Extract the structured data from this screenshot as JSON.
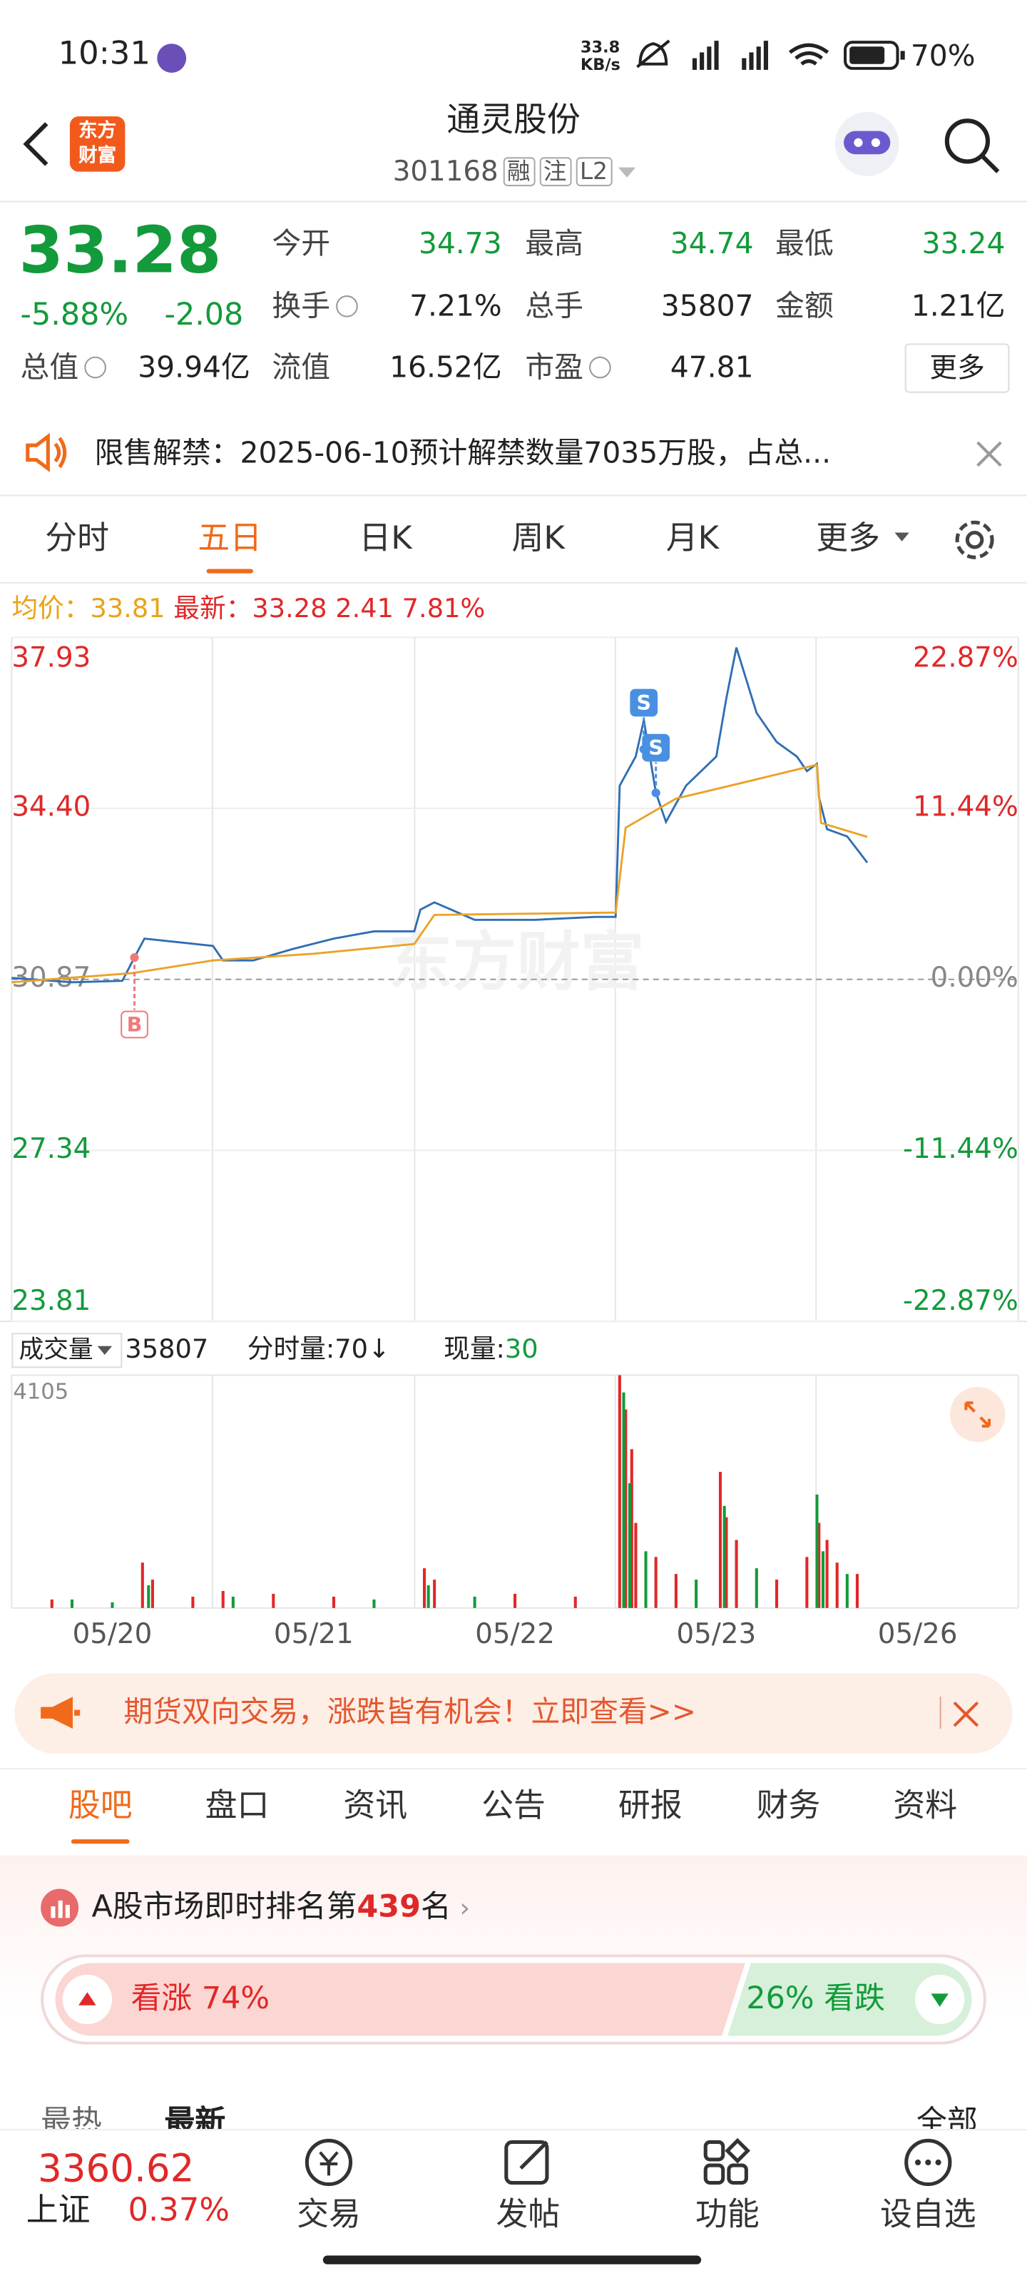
{
  "status_bar": {
    "time": "10:31",
    "net_speed": "33.8",
    "net_unit": "KB/s",
    "battery": "70%"
  },
  "header": {
    "logo": "东方财富",
    "title": "通灵股份",
    "code": "301168",
    "tags": [
      "融",
      "注",
      "L2"
    ]
  },
  "quote": {
    "price": "33.28",
    "change_pct": "-5.88%",
    "change": "-2.08",
    "fields": [
      {
        "label": "今开",
        "value": "34.73"
      },
      {
        "label": "最高",
        "value": "34.74"
      },
      {
        "label": "最低",
        "value": "33.24"
      },
      {
        "label": "换手",
        "value": "7.21%"
      },
      {
        "label": "总手",
        "value": "35807"
      },
      {
        "label": "金额",
        "value": "1.21亿"
      },
      {
        "label": "总值",
        "value": "39.94亿"
      },
      {
        "label": "流值",
        "value": "16.52亿"
      },
      {
        "label": "市盈",
        "value": "47.81"
      }
    ],
    "more": "更多"
  },
  "notice": {
    "text": "限售解禁：2025-06-10预计解禁数量7035万股，占总..."
  },
  "chart_tabs": {
    "items": [
      "分时",
      "五日",
      "日K",
      "周K",
      "月K",
      "更多"
    ],
    "active": 1
  },
  "chart_info": {
    "avg_label": "均价：",
    "avg": "33.81",
    "last_label": "最新：",
    "last": "33.28",
    "change": "2.41",
    "change_pct": "7.81%"
  },
  "chart_data": [
    {
      "type": "line",
      "watermark": "东方财富",
      "xlim": [
        0,
        5
      ],
      "ylim": [
        23.81,
        37.93
      ],
      "yticks": [
        37.93,
        {
          "value": 34.4,
          "label": "34.40"
        },
        30.87,
        27.34,
        23.81
      ],
      "y2lim": [
        -22.87,
        22.87
      ],
      "y2ticks": [
        {
          "value": 22.87,
          "label": "22.87%"
        },
        {
          "value": 11.44,
          "label": "11.44%"
        },
        {
          "value": 0,
          "label": "0.00%"
        },
        {
          "value": -11.44,
          "label": "-11.44%"
        },
        {
          "value": -22.87,
          "label": "-22.87%"
        }
      ],
      "series": [
        {
          "color": "#2f6db5",
          "x": [
            0,
            0.3,
            0.55,
            0.61,
            0.66,
            1.0,
            1.05,
            1.2,
            1.4,
            1.6,
            1.8,
            2.0,
            2.03,
            2.1,
            2.3,
            2.6,
            2.9,
            3.0,
            3.02,
            3.1,
            3.14,
            3.2,
            3.25,
            3.35,
            3.5,
            3.55,
            3.6,
            3.7,
            3.8,
            3.9,
            3.95,
            4.0,
            4.01,
            4.05,
            4.15,
            4.25
          ],
          "values": [
            30.9,
            30.81,
            30.84,
            31.32,
            31.71,
            31.56,
            31.26,
            31.26,
            31.5,
            31.71,
            31.86,
            31.86,
            32.31,
            32.46,
            32.1,
            32.1,
            32.16,
            32.16,
            34.87,
            35.47,
            36.22,
            34.72,
            34.12,
            34.87,
            35.47,
            36.67,
            37.72,
            36.37,
            35.77,
            35.47,
            35.17,
            35.32,
            34.63,
            33.97,
            33.82,
            33.28
          ]
        },
        {
          "color": "#eba227",
          "x": [
            0,
            0.6,
            1.0,
            1.5,
            2.0,
            2.1,
            3.0,
            3.05,
            3.3,
            3.6,
            4.0,
            4.02,
            4.25
          ],
          "values": [
            30.81,
            31.0,
            31.26,
            31.4,
            31.6,
            32.2,
            32.25,
            34.0,
            34.6,
            34.9,
            35.3,
            34.1,
            33.81
          ]
        }
      ],
      "annotations": [
        {
          "text": "B",
          "x": 0.61,
          "y": 31.32,
          "color": "#f07a7a"
        },
        {
          "text": "S",
          "x": 3.14,
          "y": 35.62,
          "color": "#4a90e2"
        },
        {
          "text": "S",
          "x": 3.2,
          "y": 34.72,
          "color": "#4a90e2"
        }
      ]
    },
    {
      "type": "bar",
      "xlim": [
        0,
        5
      ],
      "ylim": [
        0,
        4105
      ],
      "yticks": [
        4105
      ],
      "xticks": [
        {
          "value": 0.5,
          "label": "05/20"
        },
        {
          "value": 1.5,
          "label": "05/21"
        },
        {
          "value": 2.5,
          "label": "05/22"
        },
        {
          "value": 3.5,
          "label": "05/23"
        },
        {
          "value": 4.5,
          "label": "05/26"
        }
      ],
      "series": [
        {
          "color": "#e02828",
          "x": [
            0.2,
            0.65,
            0.7,
            0.9,
            1.05,
            1.3,
            1.6,
            2.05,
            2.1,
            2.5,
            2.8,
            3.02,
            3.05,
            3.08,
            3.1,
            3.2,
            3.3,
            3.52,
            3.55,
            3.6,
            3.8,
            3.95,
            4.01,
            4.05,
            4.1,
            4.2
          ],
          "values": [
            150,
            800,
            500,
            200,
            300,
            250,
            200,
            700,
            500,
            250,
            200,
            4105,
            3500,
            2800,
            1500,
            900,
            600,
            2400,
            1600,
            1200,
            500,
            900,
            1500,
            1200,
            800,
            600
          ]
        },
        {
          "color": "#139a3a",
          "x": [
            0.3,
            0.5,
            0.68,
            1.1,
            1.8,
            2.07,
            2.3,
            3.04,
            3.07,
            3.15,
            3.4,
            3.54,
            3.7,
            4.0,
            4.03,
            4.15
          ],
          "values": [
            150,
            100,
            400,
            200,
            150,
            400,
            200,
            3800,
            2200,
            1000,
            500,
            1800,
            700,
            2000,
            1000,
            600
          ]
        }
      ]
    }
  ],
  "volume_info": {
    "label": "成交量",
    "total": "35807",
    "tick_label": "分时量:70",
    "tick_arrow": "↓",
    "current_label": "现量:",
    "current": "30"
  },
  "ad": {
    "text": "期货双向交易，涨跌皆有机会！立即查看>>"
  },
  "content_tabs": {
    "items": [
      "股吧",
      "盘口",
      "资讯",
      "公告",
      "研报",
      "财务",
      "资料"
    ],
    "active": 0
  },
  "ranking": {
    "prefix": "A股市场即时排名第",
    "rank": "439",
    "suffix": "名"
  },
  "sentiment": {
    "bull_label": "看涨",
    "bull": 74,
    "bull_text": "74%",
    "bear_label": "看跌",
    "bear": 26,
    "bear_text": "26%"
  },
  "sort": {
    "hot": "最热",
    "new": "最新",
    "all": "全部"
  },
  "bottom_nav": {
    "index_value": "3360.62",
    "index_name": "上证",
    "index_change": "0.37%",
    "items": [
      "交易",
      "发帖",
      "功能",
      "设自选"
    ]
  }
}
